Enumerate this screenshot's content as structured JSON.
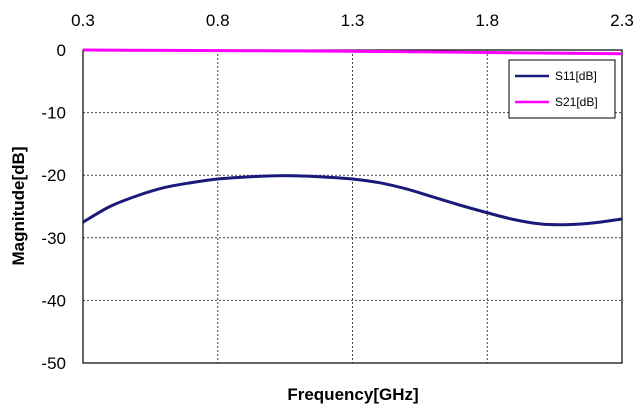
{
  "chart_data": {
    "type": "line",
    "title": "",
    "xlabel": "Frequency[GHz]",
    "ylabel": "Magnitude[dB]",
    "xlim": [
      0.3,
      2.3
    ],
    "ylim": [
      -50,
      0
    ],
    "x_ticks": [
      "0.3",
      "0.8",
      "1.3",
      "1.8",
      "2.3"
    ],
    "y_ticks": [
      "0",
      "-10",
      "-20",
      "-30",
      "-40",
      "-50"
    ],
    "x_axis_position": "top",
    "grid": true,
    "legend_position": "top-right",
    "series": [
      {
        "name": "S11[dB]",
        "color": "#1a1a7a",
        "x": [
          0.3,
          0.4,
          0.5,
          0.6,
          0.7,
          0.8,
          0.9,
          1.0,
          1.1,
          1.2,
          1.3,
          1.4,
          1.5,
          1.6,
          1.7,
          1.8,
          1.9,
          2.0,
          2.1,
          2.2,
          2.3
        ],
        "y": [
          -27.5,
          -25.0,
          -23.3,
          -22.0,
          -21.2,
          -20.6,
          -20.3,
          -20.1,
          -20.1,
          -20.3,
          -20.6,
          -21.2,
          -22.2,
          -23.5,
          -24.8,
          -26.0,
          -27.1,
          -27.8,
          -27.9,
          -27.6,
          -27.0
        ]
      },
      {
        "name": "S21[dB]",
        "color": "#ff00ff",
        "x": [
          0.3,
          0.8,
          1.3,
          1.8,
          2.3
        ],
        "y": [
          0.0,
          -0.1,
          -0.2,
          -0.4,
          -0.6
        ]
      }
    ]
  }
}
